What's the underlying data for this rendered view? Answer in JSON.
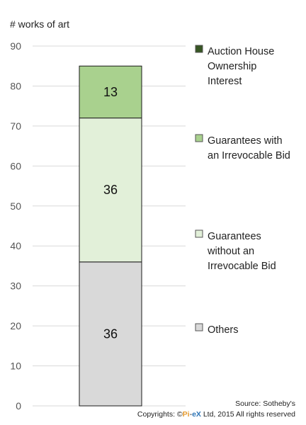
{
  "chart_data": {
    "type": "bar",
    "stacked": true,
    "ylabel": "# works of art",
    "ylim": [
      0,
      90
    ],
    "yticks": [
      "0",
      "10",
      "20",
      "30",
      "40",
      "50",
      "60",
      "70",
      "80",
      "90"
    ],
    "grid": true,
    "legend_position": "right",
    "categories": [
      ""
    ],
    "series": [
      {
        "name": "Others",
        "values": [
          36
        ],
        "label": "36",
        "color": "#d9d9d9",
        "legend_lines": [
          "Others"
        ]
      },
      {
        "name": "Guarantees without an Irrevocable Bid",
        "values": [
          36
        ],
        "label": "36",
        "color": "#e2f0d9",
        "legend_lines": [
          "Guarantees",
          "without an",
          "Irrevocable Bid"
        ]
      },
      {
        "name": "Guarantees with an Irrevocable Bid",
        "values": [
          13
        ],
        "label": "13",
        "color": "#a9d18e",
        "legend_lines": [
          "Guarantees with",
          "an Irrevocable Bid"
        ]
      },
      {
        "name": "Auction House Ownership Interest",
        "values": [
          0
        ],
        "label": "",
        "color": "#375623",
        "legend_lines": [
          "Auction House",
          "Ownership",
          "Interest"
        ]
      }
    ]
  },
  "source": {
    "line1": "Source: Sotheby's",
    "line2_prefix": "Copyrights: ©",
    "brand_pi": "Pi",
    "brand_dash": "-",
    "brand_ex": "eX",
    "line2_suffix": " Ltd, 2015 All rights reserved",
    "brand_color_pi": "#e69a2e",
    "brand_color_ex": "#2e75b6"
  }
}
